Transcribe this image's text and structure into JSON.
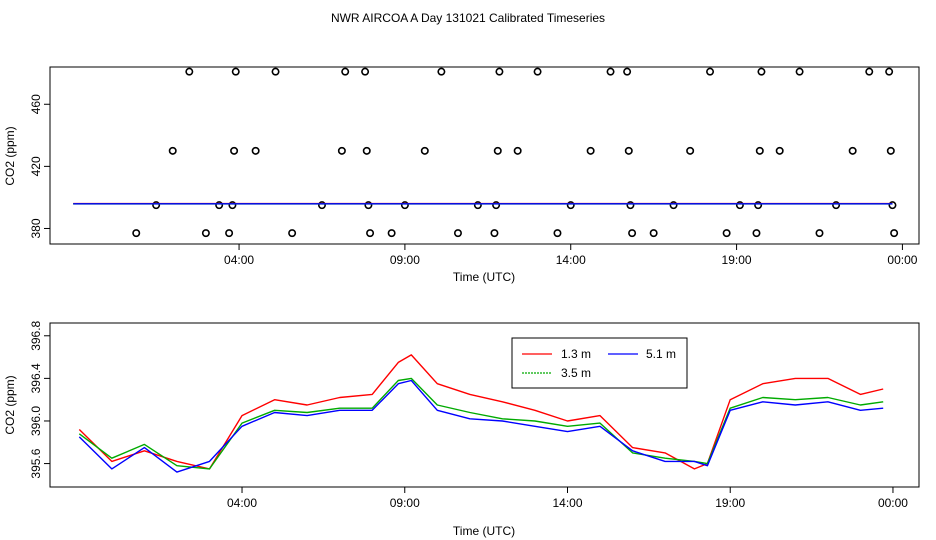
{
  "title": "NWR AIRCOA A  Day 131021  Calibrated Timeseries",
  "chart_data": [
    {
      "type": "scatter",
      "id": "top",
      "xlabel": "Time (UTC)",
      "ylabel": "CO2 (ppm)",
      "xlim": [
        -1.7,
        24.5
      ],
      "ylim": [
        370,
        484
      ],
      "x_ticks": [
        {
          "value": 4,
          "label": "04:00"
        },
        {
          "value": 9,
          "label": "09:00"
        },
        {
          "value": 14,
          "label": "14:00"
        },
        {
          "value": 19,
          "label": "19:00"
        },
        {
          "value": 24,
          "label": "00:00"
        }
      ],
      "y_ticks": [
        {
          "value": 380,
          "label": "380"
        },
        {
          "value": 420,
          "label": "420"
        },
        {
          "value": 460,
          "label": "460"
        }
      ],
      "points": [
        {
          "x": 0.9,
          "y": 377
        },
        {
          "x": 1.5,
          "y": 395
        },
        {
          "x": 2.0,
          "y": 430
        },
        {
          "x": 2.5,
          "y": 481
        },
        {
          "x": 3.0,
          "y": 377
        },
        {
          "x": 3.4,
          "y": 395
        },
        {
          "x": 3.7,
          "y": 377
        },
        {
          "x": 3.8,
          "y": 395
        },
        {
          "x": 3.85,
          "y": 430
        },
        {
          "x": 3.9,
          "y": 481
        },
        {
          "x": 4.5,
          "y": 430
        },
        {
          "x": 5.1,
          "y": 481
        },
        {
          "x": 5.6,
          "y": 377
        },
        {
          "x": 6.5,
          "y": 395
        },
        {
          "x": 7.1,
          "y": 430
        },
        {
          "x": 7.2,
          "y": 481
        },
        {
          "x": 7.8,
          "y": 481
        },
        {
          "x": 7.85,
          "y": 430
        },
        {
          "x": 7.9,
          "y": 395
        },
        {
          "x": 7.95,
          "y": 377
        },
        {
          "x": 8.6,
          "y": 377
        },
        {
          "x": 9.0,
          "y": 395
        },
        {
          "x": 9.6,
          "y": 430
        },
        {
          "x": 10.1,
          "y": 481
        },
        {
          "x": 10.6,
          "y": 377
        },
        {
          "x": 11.2,
          "y": 395
        },
        {
          "x": 11.7,
          "y": 377
        },
        {
          "x": 11.75,
          "y": 395
        },
        {
          "x": 11.8,
          "y": 430
        },
        {
          "x": 11.85,
          "y": 481
        },
        {
          "x": 12.4,
          "y": 430
        },
        {
          "x": 13.0,
          "y": 481
        },
        {
          "x": 13.6,
          "y": 377
        },
        {
          "x": 14.0,
          "y": 395
        },
        {
          "x": 14.6,
          "y": 430
        },
        {
          "x": 15.2,
          "y": 481
        },
        {
          "x": 15.7,
          "y": 481
        },
        {
          "x": 15.75,
          "y": 430
        },
        {
          "x": 15.8,
          "y": 395
        },
        {
          "x": 15.85,
          "y": 377
        },
        {
          "x": 16.5,
          "y": 377
        },
        {
          "x": 17.1,
          "y": 395
        },
        {
          "x": 17.6,
          "y": 430
        },
        {
          "x": 18.2,
          "y": 481
        },
        {
          "x": 18.7,
          "y": 377
        },
        {
          "x": 19.1,
          "y": 395
        },
        {
          "x": 19.6,
          "y": 377
        },
        {
          "x": 19.65,
          "y": 395
        },
        {
          "x": 19.7,
          "y": 430
        },
        {
          "x": 19.75,
          "y": 481
        },
        {
          "x": 20.3,
          "y": 430
        },
        {
          "x": 20.9,
          "y": 481
        },
        {
          "x": 21.5,
          "y": 377
        },
        {
          "x": 22.0,
          "y": 395
        },
        {
          "x": 22.5,
          "y": 430
        },
        {
          "x": 23.0,
          "y": 481
        },
        {
          "x": 23.6,
          "y": 481
        },
        {
          "x": 23.65,
          "y": 430
        },
        {
          "x": 23.7,
          "y": 395
        },
        {
          "x": 23.75,
          "y": 377
        }
      ],
      "lines": [
        {
          "name": "1.3 m",
          "color": "#ff0000",
          "x": [
            -1.0,
            23.7
          ],
          "y": [
            396.0,
            396.0
          ]
        },
        {
          "name": "3.5 m",
          "color": "#00cc00",
          "x": [
            -1.0,
            23.7
          ],
          "y": [
            395.8,
            395.8
          ]
        },
        {
          "name": "5.1 m",
          "color": "#0000ff",
          "x": [
            -1.0,
            23.7
          ],
          "y": [
            395.9,
            395.9
          ]
        }
      ]
    },
    {
      "type": "line",
      "id": "bottom",
      "xlabel": "Time (UTC)",
      "ylabel": "CO2 (ppm)",
      "xlim": [
        -1.9,
        24.8
      ],
      "ylim": [
        395.38,
        396.92
      ],
      "x_ticks": [
        {
          "value": 4,
          "label": "04:00"
        },
        {
          "value": 9,
          "label": "09:00"
        },
        {
          "value": 14,
          "label": "14:00"
        },
        {
          "value": 19,
          "label": "19:00"
        },
        {
          "value": 24,
          "label": "00:00"
        }
      ],
      "y_ticks": [
        {
          "value": 395.6,
          "label": "395.6"
        },
        {
          "value": 396.0,
          "label": "396.0"
        },
        {
          "value": 396.4,
          "label": "396.4"
        },
        {
          "value": 396.8,
          "label": "396.8"
        }
      ],
      "legend": {
        "position": "top-center",
        "entries": [
          "1.3 m",
          "3.5 m",
          "5.1 m"
        ]
      },
      "x": [
        -1.0,
        0.0,
        1.0,
        2.0,
        3.0,
        4.0,
        5.0,
        6.0,
        7.0,
        8.0,
        8.8,
        9.2,
        10.0,
        11.0,
        12.0,
        13.0,
        14.0,
        15.0,
        16.0,
        17.0,
        17.9,
        18.3,
        19.0,
        20.0,
        21.0,
        22.0,
        23.0,
        23.7
      ],
      "series": [
        {
          "name": "1.3 m",
          "color": "#ff0000",
          "values": [
            395.92,
            395.62,
            395.72,
            395.62,
            395.55,
            396.05,
            396.2,
            396.15,
            396.22,
            396.25,
            396.55,
            396.62,
            396.35,
            396.25,
            396.18,
            396.1,
            396.0,
            396.05,
            395.75,
            395.7,
            395.55,
            395.6,
            396.2,
            396.35,
            396.4,
            396.4,
            396.25,
            396.3
          ]
        },
        {
          "name": "3.5 m",
          "color": "#00aa00",
          "values": [
            395.88,
            395.65,
            395.78,
            395.58,
            395.55,
            395.98,
            396.1,
            396.08,
            396.12,
            396.12,
            396.38,
            396.4,
            396.15,
            396.08,
            396.02,
            396.0,
            395.95,
            395.98,
            395.7,
            395.65,
            395.62,
            395.6,
            396.12,
            396.22,
            396.2,
            396.22,
            396.15,
            396.18
          ]
        },
        {
          "name": "5.1 m",
          "color": "#0000ff",
          "values": [
            395.85,
            395.55,
            395.75,
            395.52,
            395.62,
            395.95,
            396.08,
            396.05,
            396.1,
            396.1,
            396.35,
            396.38,
            396.1,
            396.02,
            396.0,
            395.95,
            395.9,
            395.95,
            395.72,
            395.62,
            395.62,
            395.58,
            396.1,
            396.18,
            396.15,
            396.18,
            396.1,
            396.12
          ]
        }
      ]
    }
  ]
}
